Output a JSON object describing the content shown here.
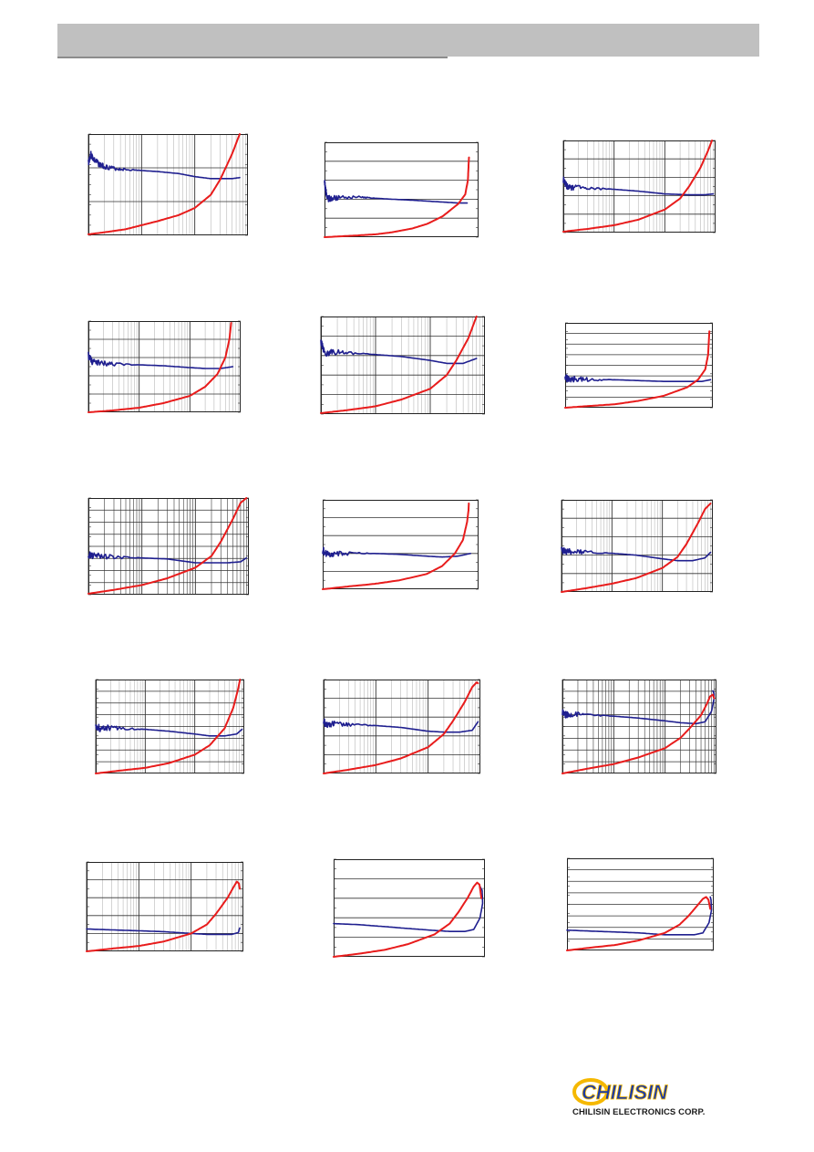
{
  "header": {
    "background": "#c0c0c0",
    "rule": "#8c8c8c"
  },
  "logo": {
    "wordmark": "CHILISIN",
    "caption": "CHILISIN ELECTRONICS CORP.",
    "ring_color": "#f5b800",
    "text_color": "#1a3aa8"
  },
  "chart_data": [
    {
      "type": "line",
      "xscale": "log",
      "xlim": [
        1,
        1000
      ],
      "ylim": [
        0,
        100
      ],
      "grid": "log-x-major-minor",
      "series": [
        {
          "color": "#1f1f8f",
          "x": [
            1,
            1.1,
            1.3,
            1.6,
            2,
            3,
            5,
            10,
            20,
            50,
            100,
            200,
            300,
            500,
            700
          ],
          "y": [
            72,
            80,
            74,
            70,
            68,
            66,
            65,
            64,
            63,
            61,
            58,
            56,
            56,
            56,
            57
          ],
          "noisy": true
        },
        {
          "color": "#e81c1c",
          "x": [
            1,
            2,
            5,
            10,
            20,
            50,
            100,
            200,
            300,
            500,
            700
          ],
          "y": [
            1,
            3,
            6,
            10,
            14,
            20,
            27,
            40,
            55,
            80,
            100
          ]
        }
      ]
    },
    {
      "type": "line",
      "xscale": "log",
      "xlim": [
        1,
        1000
      ],
      "ylim": [
        0,
        100
      ],
      "grid": "horizontal",
      "series": [
        {
          "color": "#1f1f8f",
          "x": [
            1,
            1.1,
            1.3,
            2,
            5,
            10,
            20,
            50,
            100,
            200,
            400,
            600
          ],
          "y": [
            58,
            42,
            40,
            42,
            42,
            41,
            40,
            39,
            38,
            37,
            36,
            36
          ],
          "noisy": true
        },
        {
          "color": "#e81c1c",
          "x": [
            1,
            5,
            10,
            20,
            50,
            100,
            200,
            400,
            550,
            620,
            650
          ],
          "y": [
            0,
            2,
            3,
            5,
            9,
            14,
            22,
            35,
            45,
            60,
            84
          ]
        }
      ]
    },
    {
      "type": "line",
      "xscale": "log",
      "xlim": [
        1,
        1000
      ],
      "ylim": [
        0,
        100
      ],
      "grid": "log-x-horizontal",
      "series": [
        {
          "color": "#1f1f8f",
          "x": [
            1,
            1.2,
            1.6,
            3,
            10,
            30,
            100,
            300,
            600,
            900
          ],
          "y": [
            57,
            50,
            49,
            48,
            47,
            45,
            42,
            41,
            41,
            42
          ],
          "noisy": true
        },
        {
          "color": "#e81c1c",
          "x": [
            1,
            3,
            10,
            30,
            100,
            200,
            300,
            500,
            700,
            850
          ],
          "y": [
            1,
            4,
            8,
            14,
            25,
            37,
            50,
            70,
            88,
            100
          ]
        }
      ]
    },
    {
      "type": "line",
      "xscale": "log",
      "xlim": [
        1,
        1000
      ],
      "ylim": [
        0,
        100
      ],
      "grid": "log-x-horizontal",
      "series": [
        {
          "color": "#1f1f8f",
          "x": [
            1,
            1.2,
            1.6,
            3,
            10,
            30,
            100,
            200,
            400,
            700
          ],
          "y": [
            62,
            55,
            54,
            53,
            52,
            51,
            49,
            48,
            48,
            50
          ],
          "noisy": true
        },
        {
          "color": "#e81c1c",
          "x": [
            1,
            3,
            10,
            30,
            100,
            200,
            350,
            500,
            600,
            650
          ],
          "y": [
            0,
            2,
            5,
            10,
            18,
            28,
            42,
            60,
            80,
            98
          ]
        }
      ]
    },
    {
      "type": "line",
      "xscale": "log",
      "xlim": [
        1,
        1000
      ],
      "ylim": [
        0,
        100
      ],
      "grid": "log-x-horizontal",
      "series": [
        {
          "color": "#1f1f8f",
          "x": [
            1,
            1.2,
            1.6,
            3,
            10,
            30,
            100,
            200,
            400,
            700
          ],
          "y": [
            74,
            62,
            64,
            63,
            61,
            59,
            55,
            52,
            52,
            57
          ],
          "noisy": true
        },
        {
          "color": "#e81c1c",
          "x": [
            1,
            3,
            10,
            30,
            100,
            200,
            300,
            500,
            700
          ],
          "y": [
            1,
            4,
            8,
            15,
            26,
            40,
            55,
            78,
            100
          ]
        }
      ]
    },
    {
      "type": "line",
      "xscale": "log",
      "xlim": [
        1,
        1000
      ],
      "ylim": [
        0,
        100
      ],
      "grid": "horizontal-dense",
      "series": [
        {
          "color": "#1f1f8f",
          "x": [
            1,
            1.2,
            1.6,
            3,
            10,
            30,
            100,
            300,
            600,
            900
          ],
          "y": [
            36,
            33,
            34,
            33,
            33,
            32,
            31,
            31,
            31,
            33
          ],
          "noisy": true
        },
        {
          "color": "#e81c1c",
          "x": [
            1,
            3,
            10,
            30,
            100,
            300,
            500,
            700,
            800,
            850
          ],
          "y": [
            0,
            2,
            4,
            8,
            14,
            24,
            33,
            45,
            62,
            90
          ]
        }
      ]
    },
    {
      "type": "line",
      "xscale": "log",
      "xlim": [
        1,
        1000
      ],
      "ylim": [
        0,
        100
      ],
      "grid": "dense-log",
      "series": [
        {
          "color": "#1f1f8f",
          "x": [
            1,
            1.2,
            1.6,
            3,
            10,
            30,
            100,
            200,
            400,
            700,
            900
          ],
          "y": [
            41,
            40,
            40,
            39,
            38,
            37,
            33,
            33,
            33,
            34,
            38
          ],
          "noisy": true
        },
        {
          "color": "#e81c1c",
          "x": [
            1,
            3,
            10,
            30,
            100,
            200,
            300,
            500,
            700,
            900
          ],
          "y": [
            1,
            5,
            10,
            17,
            28,
            40,
            55,
            78,
            95,
            100
          ]
        }
      ]
    },
    {
      "type": "line",
      "xscale": "log",
      "xlim": [
        1,
        1000
      ],
      "ylim": [
        0,
        100
      ],
      "grid": "horizontal",
      "series": [
        {
          "color": "#1f1f8f",
          "x": [
            1,
            1.2,
            1.6,
            3,
            10,
            30,
            100,
            200,
            400,
            700
          ],
          "y": [
            44,
            39,
            40,
            40,
            40,
            39,
            37,
            36,
            37,
            40
          ],
          "noisy": true
        },
        {
          "color": "#e81c1c",
          "x": [
            1,
            3,
            10,
            30,
            100,
            200,
            350,
            500,
            600,
            640,
            650
          ],
          "y": [
            0,
            3,
            6,
            10,
            17,
            26,
            40,
            55,
            75,
            88,
            96
          ]
        }
      ]
    },
    {
      "type": "line",
      "xscale": "log",
      "xlim": [
        1,
        1000
      ],
      "ylim": [
        0,
        100
      ],
      "grid": "log-x-horizontal",
      "series": [
        {
          "color": "#1f1f8f",
          "x": [
            1,
            1.2,
            1.6,
            3,
            10,
            30,
            100,
            200,
            400,
            700,
            900
          ],
          "y": [
            46,
            43,
            44,
            43,
            42,
            40,
            36,
            34,
            34,
            37,
            43
          ],
          "noisy": true
        },
        {
          "color": "#e81c1c",
          "x": [
            1,
            3,
            10,
            30,
            100,
            200,
            300,
            500,
            700,
            900
          ],
          "y": [
            0,
            4,
            9,
            15,
            26,
            38,
            52,
            74,
            90,
            96
          ]
        }
      ]
    },
    {
      "type": "line",
      "xscale": "log",
      "xlim": [
        1,
        1000
      ],
      "ylim": [
        0,
        100
      ],
      "grid": "log-x-horizontal-dense",
      "series": [
        {
          "color": "#1f1f8f",
          "x": [
            1,
            1.2,
            1.6,
            3,
            10,
            30,
            100,
            200,
            400,
            700,
            900
          ],
          "y": [
            51,
            48,
            49,
            48,
            47,
            45,
            42,
            40,
            40,
            42,
            47
          ],
          "noisy": true
        },
        {
          "color": "#e81c1c",
          "x": [
            1,
            3,
            10,
            30,
            100,
            200,
            400,
            600,
            750,
            820
          ],
          "y": [
            0,
            3,
            6,
            11,
            20,
            30,
            48,
            70,
            90,
            100
          ]
        }
      ]
    },
    {
      "type": "line",
      "xscale": "log",
      "xlim": [
        1,
        1000
      ],
      "ylim": [
        0,
        100
      ],
      "grid": "log-x-horizontal",
      "series": [
        {
          "color": "#1f1f8f",
          "x": [
            1,
            1.2,
            1.6,
            3,
            10,
            30,
            100,
            200,
            400,
            700,
            900
          ],
          "y": [
            55,
            52,
            53,
            52,
            51,
            49,
            45,
            44,
            44,
            46,
            55
          ],
          "noisy": true
        },
        {
          "color": "#e81c1c",
          "x": [
            1,
            3,
            10,
            30,
            100,
            200,
            300,
            500,
            700,
            850,
            900
          ],
          "y": [
            0,
            4,
            9,
            16,
            28,
            42,
            56,
            76,
            92,
            97,
            96
          ]
        }
      ]
    },
    {
      "type": "line",
      "xscale": "log",
      "xlim": [
        1,
        1000
      ],
      "ylim": [
        0,
        100
      ],
      "grid": "dense-log",
      "series": [
        {
          "color": "#1f1f8f",
          "x": [
            1,
            1.2,
            1.6,
            3,
            10,
            30,
            100,
            200,
            400,
            600,
            800,
            900,
            900,
            850
          ],
          "y": [
            66,
            62,
            63,
            62,
            61,
            59,
            56,
            54,
            53,
            55,
            66,
            80,
            85,
            88
          ],
          "noisy": true
        },
        {
          "color": "#e81c1c",
          "x": [
            1,
            3,
            10,
            30,
            100,
            200,
            300,
            500,
            650,
            750,
            850,
            900
          ],
          "y": [
            0,
            5,
            10,
            17,
            27,
            38,
            48,
            62,
            74,
            82,
            84,
            80
          ]
        }
      ]
    },
    {
      "type": "line",
      "xscale": "log",
      "xlim": [
        1,
        1000
      ],
      "ylim": [
        0,
        100
      ],
      "grid": "log-x-horizontal",
      "series": [
        {
          "color": "#1f1f8f",
          "x": [
            1,
            3,
            10,
            30,
            100,
            200,
            400,
            600,
            800,
            850
          ],
          "y": [
            25,
            24,
            23,
            22,
            20,
            19,
            19,
            19,
            21,
            26
          ]
        },
        {
          "color": "#e81c1c",
          "x": [
            1,
            3,
            10,
            30,
            100,
            200,
            300,
            500,
            650,
            750,
            820,
            850
          ],
          "y": [
            0,
            3,
            6,
            11,
            20,
            30,
            42,
            60,
            72,
            78,
            76,
            70
          ]
        }
      ]
    },
    {
      "type": "line",
      "xscale": "log",
      "xlim": [
        1,
        1000
      ],
      "ylim": [
        0,
        100
      ],
      "grid": "horizontal",
      "series": [
        {
          "color": "#1f1f8f",
          "x": [
            1,
            3,
            10,
            30,
            100,
            200,
            400,
            600,
            800,
            900,
            880,
            800
          ],
          "y": [
            34,
            33,
            31,
            29,
            27,
            26,
            26,
            28,
            40,
            55,
            68,
            72
          ]
        },
        {
          "color": "#e81c1c",
          "x": [
            1,
            3,
            10,
            30,
            100,
            200,
            300,
            450,
            600,
            700,
            780,
            850
          ],
          "y": [
            0,
            3,
            7,
            13,
            23,
            34,
            46,
            60,
            72,
            76,
            74,
            60
          ]
        }
      ]
    },
    {
      "type": "line",
      "xscale": "log",
      "xlim": [
        1,
        1000
      ],
      "ylim": [
        0,
        100
      ],
      "grid": "horizontal-dense",
      "series": [
        {
          "color": "#1f1f8f",
          "x": [
            1,
            3,
            10,
            30,
            100,
            200,
            400,
            600,
            800,
            900,
            880,
            850
          ],
          "y": [
            22,
            21,
            20,
            19,
            17,
            17,
            17,
            19,
            30,
            44,
            55,
            58
          ]
        },
        {
          "color": "#e81c1c",
          "x": [
            1,
            3,
            10,
            30,
            100,
            200,
            300,
            450,
            600,
            700,
            780,
            850
          ],
          "y": [
            0,
            3,
            6,
            11,
            19,
            28,
            37,
            48,
            56,
            58,
            55,
            45
          ]
        }
      ]
    }
  ]
}
